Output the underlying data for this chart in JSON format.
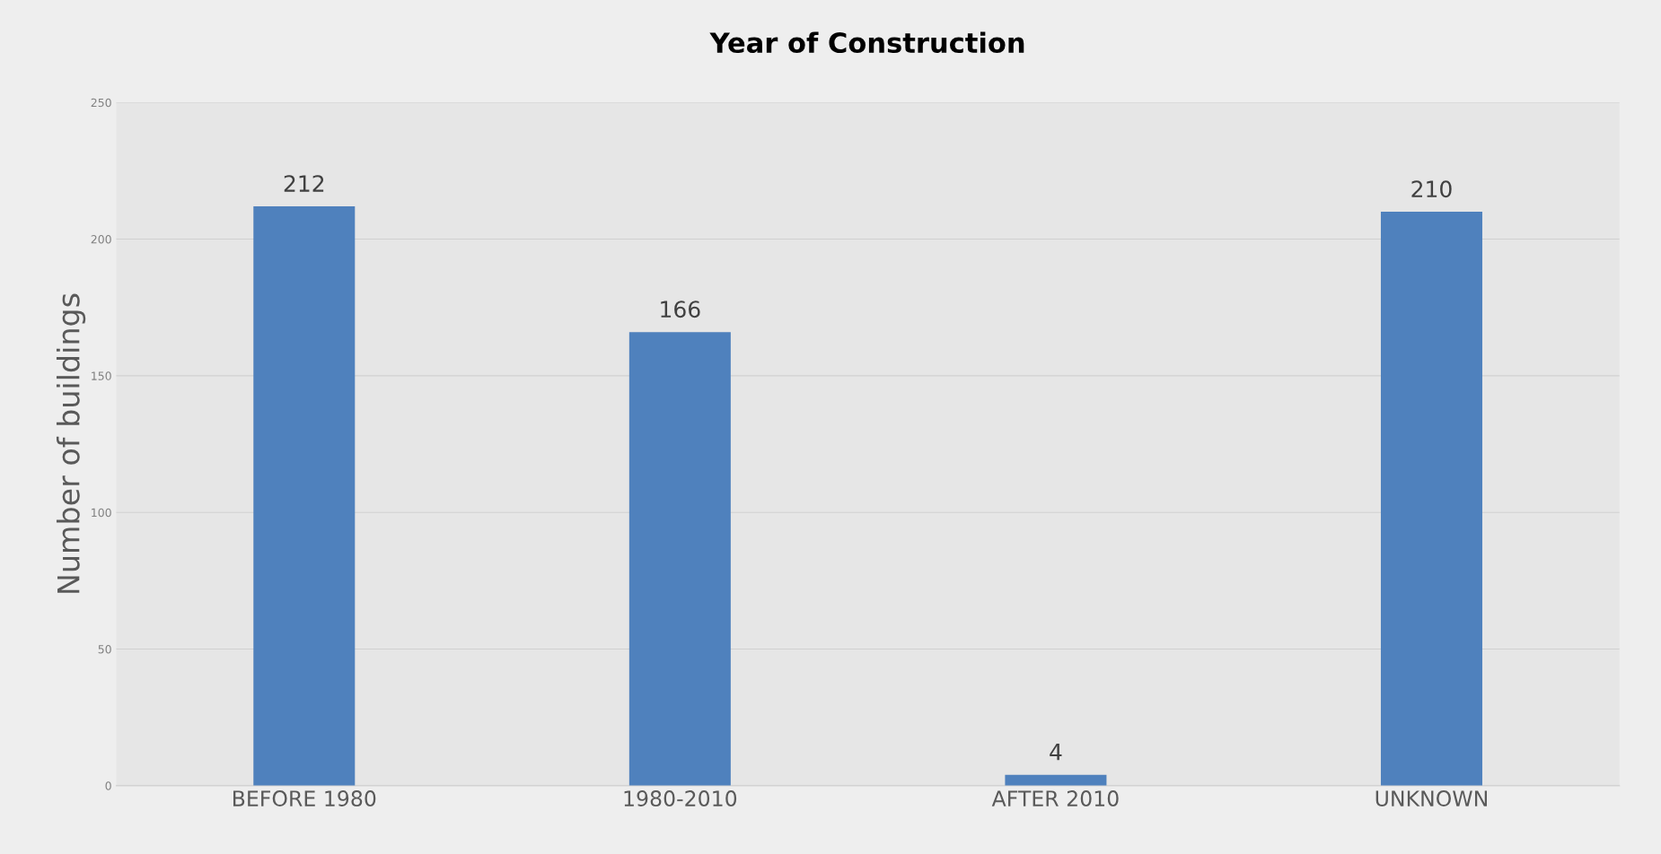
{
  "chart_data": {
    "type": "bar",
    "title": "Year of Construction",
    "ylabel": "Number of buildings",
    "categories": [
      "BEFORE 1980",
      "1980-2010",
      "AFTER 2010",
      "UNKNOWN"
    ],
    "values": [
      212,
      166,
      4,
      210
    ],
    "color": "#4f81bd",
    "ylim": [
      0,
      250
    ],
    "yticks": [
      0,
      50,
      100,
      150,
      200,
      250
    ],
    "grid": "y",
    "data_labels": true
  }
}
